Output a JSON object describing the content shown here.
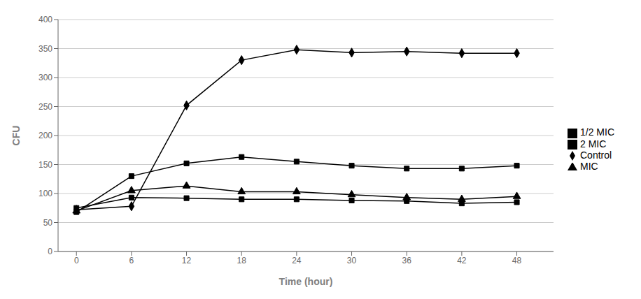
{
  "chart_data": {
    "type": "line",
    "x": [
      0,
      6,
      12,
      18,
      24,
      30,
      36,
      42,
      48
    ],
    "series": [
      {
        "name": "Control",
        "color": "#000000",
        "marker": "diamond",
        "values": [
          72,
          78,
          252,
          330,
          348,
          343,
          345,
          342,
          342
        ]
      },
      {
        "name": "1/2 MIC",
        "color": "#000000",
        "marker": "square",
        "values": [
          68,
          130,
          152,
          163,
          155,
          148,
          143,
          143,
          148
        ]
      },
      {
        "name": "MIC",
        "color": "#000000",
        "marker": "triangle",
        "values": [
          70,
          105,
          113,
          103,
          103,
          98,
          93,
          90,
          95
        ]
      },
      {
        "name": "2 MIC",
        "color": "#000000",
        "marker": "square",
        "values": [
          75,
          93,
          92,
          90,
          90,
          88,
          87,
          83,
          85
        ]
      }
    ],
    "xlabel": "Time (hour)",
    "ylabel": "CFU",
    "xlim": [
      -2,
      52
    ],
    "ylim": [
      0,
      400
    ],
    "xticks": [
      0,
      6,
      12,
      18,
      24,
      30,
      36,
      42,
      48
    ],
    "yticks": [
      0,
      50,
      100,
      150,
      200,
      250,
      300,
      350,
      400
    ],
    "grid": true,
    "legend": "right"
  }
}
